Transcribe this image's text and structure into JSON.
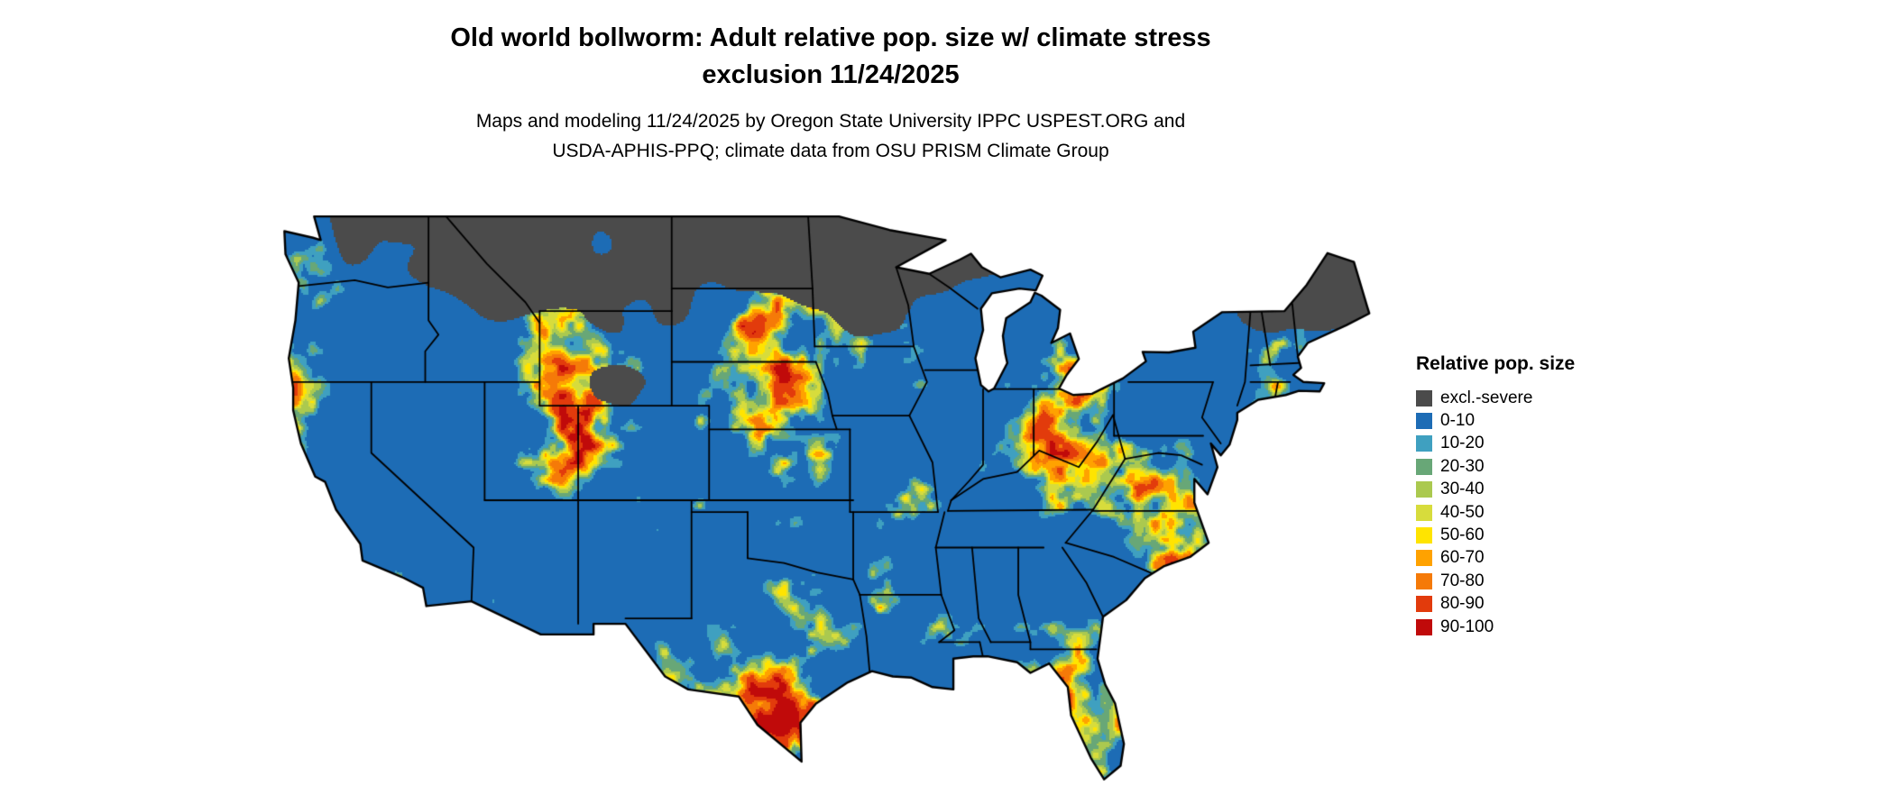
{
  "header": {
    "title_line1": "Old world bollworm: Adult relative pop. size w/ climate stress",
    "title_line2": "exclusion 11/24/2025",
    "subtitle_line1": "Maps and modeling 11/24/2025 by Oregon State University IPPC USPEST.ORG and",
    "subtitle_line2": "USDA-APHIS-PPQ; climate data from OSU PRISM Climate Group"
  },
  "map": {
    "name": "Continental United States raster map of relative population size",
    "outline_color": "#000000",
    "water_background_color": "#ffffff"
  },
  "legend": {
    "title": "Relative pop. size",
    "entries": [
      {
        "label": "excl.-severe",
        "color": "#4b4b4b"
      },
      {
        "label": "0-10",
        "color": "#1d6cb5"
      },
      {
        "label": "10-20",
        "color": "#3fa0c0"
      },
      {
        "label": "20-30",
        "color": "#68a777"
      },
      {
        "label": "30-40",
        "color": "#abc94f"
      },
      {
        "label": "40-50",
        "color": "#d7dc3c"
      },
      {
        "label": "50-60",
        "color": "#ffe400"
      },
      {
        "label": "60-70",
        "color": "#ffa200"
      },
      {
        "label": "70-80",
        "color": "#f57a08"
      },
      {
        "label": "80-90",
        "color": "#e23b0c"
      },
      {
        "label": "90-100",
        "color": "#c00a0a"
      }
    ]
  }
}
